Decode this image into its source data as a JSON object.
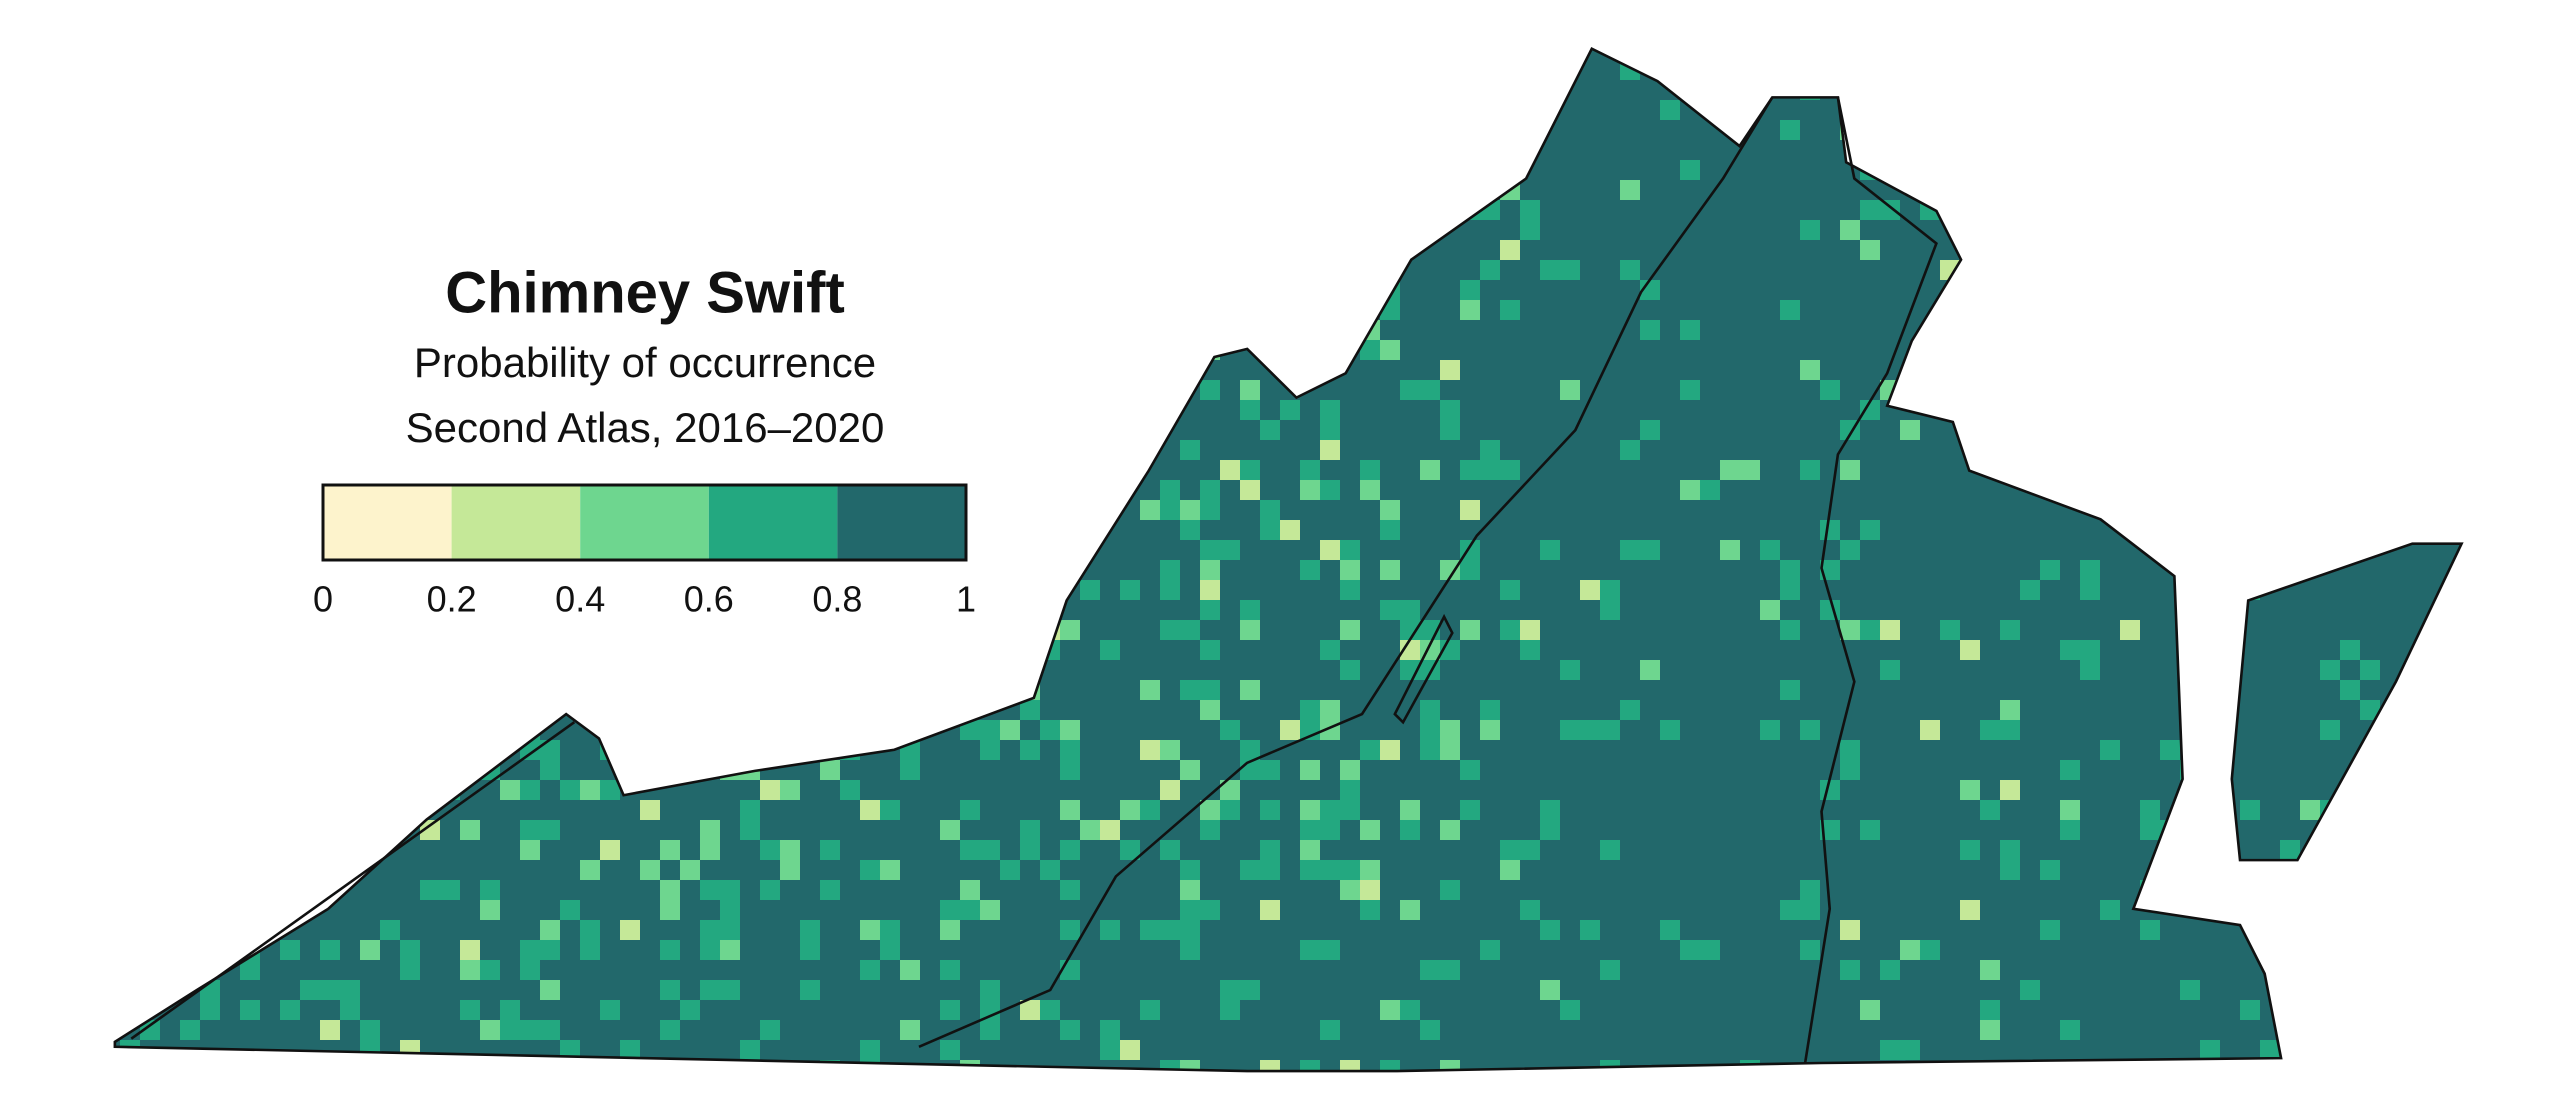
{
  "title": "Chimney Swift",
  "subtitle": "Probability of occurrence",
  "period": "Second Atlas, 2016–2020",
  "legend": {
    "breaks": [
      0,
      0.2,
      0.4,
      0.6,
      0.8,
      1
    ],
    "colors": [
      "#fdf3cc",
      "#c5e898",
      "#6ed68f",
      "#23a880",
      "#22686b"
    ]
  }
}
